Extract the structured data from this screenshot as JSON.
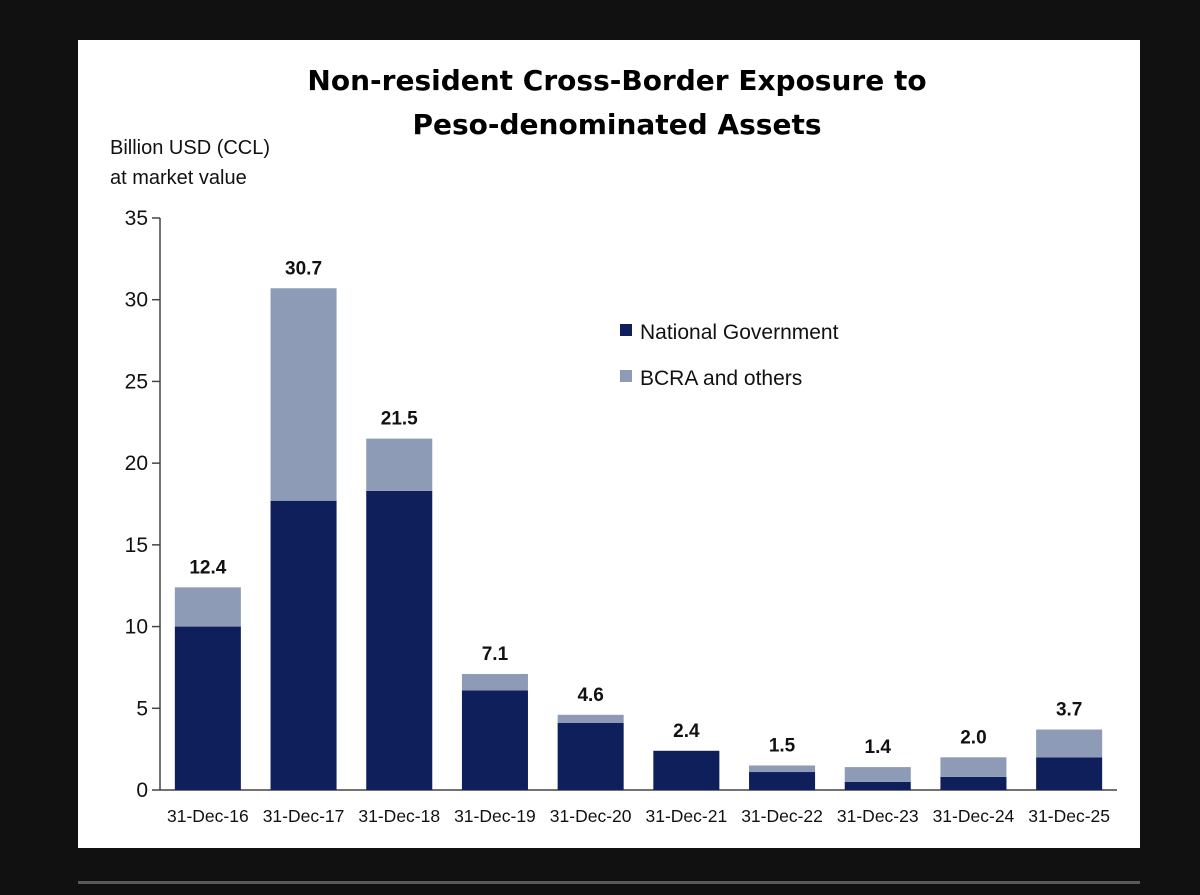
{
  "chart_data": {
    "type": "bar",
    "stacked": true,
    "title": [
      "Non-resident Cross-Border Exposure to",
      "Peso-denominated Assets"
    ],
    "ylabel": [
      "Billion USD (CCL)",
      "at market value"
    ],
    "xlabel": "",
    "ylim": [
      0,
      35
    ],
    "yticks": [
      0,
      5,
      10,
      15,
      20,
      25,
      30,
      35
    ],
    "grid": false,
    "legend_position": "top-right",
    "categories": [
      "31-Dec-16",
      "31-Dec-17",
      "31-Dec-18",
      "31-Dec-19",
      "31-Dec-20",
      "31-Dec-21",
      "31-Dec-22",
      "31-Dec-23",
      "31-Dec-24",
      "31-Dec-25"
    ],
    "series": [
      {
        "name": "National Government",
        "color": "#0f1f5c",
        "values": [
          10.0,
          17.7,
          18.3,
          6.1,
          4.1,
          2.4,
          1.1,
          0.5,
          0.8,
          2.0
        ]
      },
      {
        "name": "BCRA and others",
        "color": "#8d9bb6",
        "values": [
          2.4,
          13.0,
          3.2,
          1.0,
          0.5,
          0.0,
          0.4,
          0.9,
          1.2,
          1.7
        ]
      }
    ],
    "totals": [
      "12.4",
      "30.7",
      "21.5",
      "7.1",
      "4.6",
      "2.4",
      "1.5",
      "1.4",
      "2.0",
      "3.7"
    ]
  }
}
